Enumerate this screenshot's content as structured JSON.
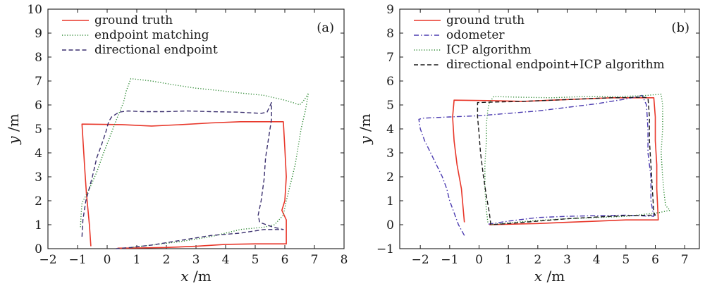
{
  "chart_data": [
    {
      "type": "line",
      "panel_label": "(a)",
      "xlabel_var": "x",
      "xlabel_unit": " /m",
      "ylabel_var": "y",
      "ylabel_unit": " /m",
      "xlim": [
        -2,
        8
      ],
      "ylim": [
        0,
        10
      ],
      "xticks": [
        -2,
        -1,
        0,
        1,
        2,
        3,
        4,
        5,
        6,
        7,
        8
      ],
      "yticks": [
        0,
        1,
        2,
        3,
        4,
        5,
        6,
        7,
        8,
        9,
        10
      ],
      "legend_position": "top-left",
      "series": [
        {
          "name": "ground truth",
          "color": "#e8372a",
          "dash": "solid",
          "points": [
            [
              -0.55,
              0.1
            ],
            [
              -0.6,
              1.0
            ],
            [
              -0.7,
              2.3
            ],
            [
              -0.75,
              3.2
            ],
            [
              -0.8,
              4.2
            ],
            [
              -0.85,
              5.2
            ],
            [
              0.5,
              5.18
            ],
            [
              1.5,
              5.12
            ],
            [
              2.5,
              5.18
            ],
            [
              3.5,
              5.25
            ],
            [
              4.5,
              5.3
            ],
            [
              5.95,
              5.3
            ],
            [
              6.0,
              4.2
            ],
            [
              6.05,
              3.0
            ],
            [
              6.0,
              2.0
            ],
            [
              5.9,
              1.6
            ],
            [
              6.05,
              1.2
            ],
            [
              6.05,
              0.2
            ],
            [
              5.0,
              0.2
            ],
            [
              4.0,
              0.18
            ],
            [
              3.0,
              0.1
            ],
            [
              2.0,
              0.05
            ],
            [
              1.0,
              0.03
            ],
            [
              0.35,
              0.02
            ]
          ]
        },
        {
          "name": "endpoint matching",
          "color": "#2f8a34",
          "dash": "dotted",
          "points": [
            [
              -0.9,
              0.9
            ],
            [
              -0.88,
              1.4
            ],
            [
              -0.85,
              1.9
            ],
            [
              -0.6,
              2.5
            ],
            [
              -0.35,
              3.2
            ],
            [
              -0.15,
              3.9
            ],
            [
              0.1,
              4.7
            ],
            [
              0.35,
              5.5
            ],
            [
              0.55,
              6.1
            ],
            [
              0.65,
              6.6
            ],
            [
              0.8,
              7.1
            ],
            [
              1.5,
              7.0
            ],
            [
              2.2,
              6.85
            ],
            [
              3.0,
              6.7
            ],
            [
              3.8,
              6.6
            ],
            [
              4.5,
              6.5
            ],
            [
              5.3,
              6.4
            ],
            [
              6.0,
              6.2
            ],
            [
              6.4,
              6.05
            ],
            [
              6.5,
              6.0
            ],
            [
              6.65,
              6.2
            ],
            [
              6.8,
              6.5
            ],
            [
              6.7,
              5.8
            ],
            [
              6.55,
              5.0
            ],
            [
              6.35,
              3.5
            ],
            [
              6.05,
              2.0
            ],
            [
              5.95,
              1.4
            ],
            [
              5.65,
              1.0
            ],
            [
              5.3,
              0.9
            ],
            [
              4.5,
              0.8
            ],
            [
              3.5,
              0.5
            ],
            [
              2.5,
              0.3
            ],
            [
              1.5,
              0.15
            ],
            [
              0.8,
              0.05
            ]
          ]
        },
        {
          "name": "directional endpoint",
          "color": "#3a2f6e",
          "dash": "dashed",
          "points": [
            [
              -0.85,
              0.5
            ],
            [
              -0.82,
              1.2
            ],
            [
              -0.72,
              2.0
            ],
            [
              -0.5,
              3.0
            ],
            [
              -0.35,
              3.8
            ],
            [
              -0.2,
              4.3
            ],
            [
              -0.05,
              4.85
            ],
            [
              0.05,
              5.3
            ],
            [
              0.15,
              5.5
            ],
            [
              0.4,
              5.7
            ],
            [
              0.7,
              5.75
            ],
            [
              1.2,
              5.72
            ],
            [
              2.0,
              5.72
            ],
            [
              2.7,
              5.75
            ],
            [
              3.5,
              5.72
            ],
            [
              4.4,
              5.7
            ],
            [
              5.2,
              5.65
            ],
            [
              5.4,
              5.7
            ],
            [
              5.55,
              6.1
            ],
            [
              5.55,
              5.4
            ],
            [
              5.45,
              4.6
            ],
            [
              5.35,
              3.8
            ],
            [
              5.3,
              2.9
            ],
            [
              5.2,
              2.0
            ],
            [
              5.1,
              1.4
            ],
            [
              5.15,
              1.1
            ],
            [
              5.6,
              0.9
            ],
            [
              5.95,
              0.8
            ],
            [
              5.3,
              0.8
            ],
            [
              4.5,
              0.65
            ],
            [
              3.5,
              0.55
            ],
            [
              2.5,
              0.35
            ],
            [
              1.5,
              0.15
            ],
            [
              0.8,
              0.05
            ],
            [
              0.3,
              0.0
            ]
          ]
        }
      ]
    },
    {
      "type": "line",
      "panel_label": "(b)",
      "xlabel_var": "x",
      "xlabel_unit": " /m",
      "ylabel_var": "y",
      "ylabel_unit": " /m",
      "xlim": [
        -2.7,
        7.5
      ],
      "ylim": [
        -1,
        9
      ],
      "xticks": [
        -2,
        -1,
        0,
        1,
        2,
        3,
        4,
        5,
        6,
        7
      ],
      "yticks": [
        -1,
        0,
        1,
        2,
        3,
        4,
        5,
        6,
        7,
        8,
        9
      ],
      "legend_position": "top-left",
      "series": [
        {
          "name": "ground truth",
          "color": "#e8372a",
          "dash": "solid",
          "points": [
            [
              -0.5,
              0.1
            ],
            [
              -0.55,
              0.8
            ],
            [
              -0.6,
              1.5
            ],
            [
              -0.75,
              2.5
            ],
            [
              -0.85,
              3.5
            ],
            [
              -0.9,
              4.5
            ],
            [
              -0.85,
              5.2
            ],
            [
              0.5,
              5.18
            ],
            [
              1.5,
              5.15
            ],
            [
              2.5,
              5.2
            ],
            [
              3.5,
              5.25
            ],
            [
              4.5,
              5.3
            ],
            [
              5.95,
              5.3
            ],
            [
              6.0,
              4.5
            ],
            [
              6.0,
              3.5
            ],
            [
              6.05,
              2.5
            ],
            [
              6.05,
              1.5
            ],
            [
              6.1,
              0.2
            ],
            [
              5.0,
              0.2
            ],
            [
              4.0,
              0.15
            ],
            [
              3.0,
              0.1
            ],
            [
              2.0,
              0.05
            ],
            [
              1.0,
              0.02
            ],
            [
              0.35,
              0.0
            ]
          ]
        },
        {
          "name": "odometer",
          "color": "#4b3bb0",
          "dash": "dashdot",
          "points": [
            [
              -0.5,
              -0.45
            ],
            [
              -0.7,
              0.0
            ],
            [
              -0.85,
              0.5
            ],
            [
              -1.0,
              1.0
            ],
            [
              -1.1,
              1.5
            ],
            [
              -1.25,
              2.0
            ],
            [
              -1.45,
              2.5
            ],
            [
              -1.65,
              3.0
            ],
            [
              -1.85,
              3.5
            ],
            [
              -2.0,
              4.0
            ],
            [
              -2.05,
              4.4
            ],
            [
              -1.9,
              4.45
            ],
            [
              -1.0,
              4.5
            ],
            [
              0.0,
              4.55
            ],
            [
              1.0,
              4.65
            ],
            [
              2.0,
              4.75
            ],
            [
              3.0,
              4.9
            ],
            [
              4.0,
              5.05
            ],
            [
              5.0,
              5.25
            ],
            [
              5.55,
              5.4
            ],
            [
              5.7,
              5.0
            ],
            [
              5.75,
              4.0
            ],
            [
              5.75,
              3.0
            ],
            [
              5.85,
              2.0
            ],
            [
              5.85,
              1.0
            ],
            [
              5.95,
              0.35
            ],
            [
              5.0,
              0.4
            ],
            [
              4.0,
              0.38
            ],
            [
              3.0,
              0.35
            ],
            [
              2.0,
              0.3
            ],
            [
              1.0,
              0.15
            ],
            [
              0.3,
              0.02
            ]
          ]
        },
        {
          "name": "ICP algorithm",
          "color": "#2f8a34",
          "dash": "dotted",
          "points": [
            [
              0.3,
              0.1
            ],
            [
              0.25,
              0.6
            ],
            [
              0.2,
              1.5
            ],
            [
              0.2,
              2.5
            ],
            [
              0.25,
              3.5
            ],
            [
              0.25,
              4.2
            ],
            [
              0.3,
              4.8
            ],
            [
              0.35,
              5.1
            ],
            [
              0.5,
              5.35
            ],
            [
              1.5,
              5.32
            ],
            [
              2.5,
              5.3
            ],
            [
              3.5,
              5.35
            ],
            [
              4.5,
              5.35
            ],
            [
              5.5,
              5.38
            ],
            [
              6.2,
              5.45
            ],
            [
              6.25,
              5.0
            ],
            [
              6.25,
              4.0
            ],
            [
              6.2,
              3.0
            ],
            [
              6.25,
              2.0
            ],
            [
              6.3,
              1.3
            ],
            [
              6.35,
              0.8
            ],
            [
              6.5,
              0.6
            ],
            [
              6.3,
              0.55
            ],
            [
              6.1,
              0.5
            ],
            [
              5.0,
              0.35
            ],
            [
              4.0,
              0.3
            ],
            [
              3.0,
              0.25
            ],
            [
              2.0,
              0.18
            ],
            [
              1.0,
              0.08
            ],
            [
              0.4,
              0.0
            ]
          ]
        },
        {
          "name": "directional endpoint+ICP algorithm",
          "color": "#1a1a1a",
          "dash": "dashed",
          "points": [
            [
              0.4,
              0.0
            ],
            [
              0.35,
              0.5
            ],
            [
              0.25,
              1.2
            ],
            [
              0.15,
              2.0
            ],
            [
              0.05,
              3.0
            ],
            [
              0.0,
              3.8
            ],
            [
              -0.05,
              4.5
            ],
            [
              -0.05,
              5.1
            ],
            [
              0.5,
              5.12
            ],
            [
              1.5,
              5.15
            ],
            [
              2.5,
              5.2
            ],
            [
              3.5,
              5.25
            ],
            [
              4.5,
              5.3
            ],
            [
              5.6,
              5.32
            ],
            [
              5.75,
              5.3
            ],
            [
              5.8,
              4.5
            ],
            [
              5.8,
              3.5
            ],
            [
              5.85,
              2.5
            ],
            [
              5.9,
              1.5
            ],
            [
              5.95,
              0.5
            ],
            [
              6.0,
              0.4
            ],
            [
              5.0,
              0.38
            ],
            [
              4.0,
              0.32
            ],
            [
              3.0,
              0.25
            ],
            [
              2.0,
              0.15
            ],
            [
              1.0,
              0.05
            ],
            [
              0.4,
              0.0
            ]
          ]
        }
      ]
    }
  ]
}
